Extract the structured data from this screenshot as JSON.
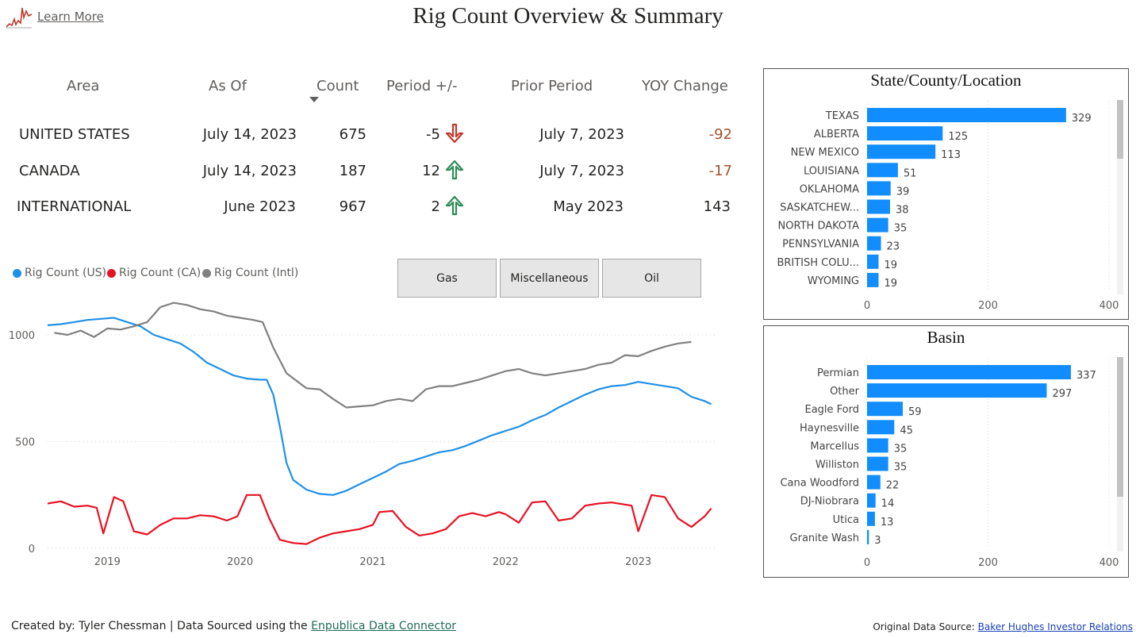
{
  "header": {
    "title": "Rig Count Overview & Summary",
    "learn_more": "Learn More"
  },
  "summary_table": {
    "headers": [
      "Area",
      "As Of",
      "Count",
      "Period +/-",
      "Prior Period",
      "YOY Change"
    ],
    "rows": [
      {
        "area": "UNITED STATES",
        "as_of": "July 14, 2023",
        "count": "675",
        "period_change": "-5",
        "direction": "down",
        "prior_period": "July 7, 2023",
        "yoy_change": "-92"
      },
      {
        "area": "CANADA",
        "as_of": "July 14, 2023",
        "count": "187",
        "period_change": "12",
        "direction": "up",
        "prior_period": "July 7, 2023",
        "yoy_change": "-17"
      },
      {
        "area": "INTERNATIONAL",
        "as_of": "June 2023",
        "count": "967",
        "period_change": "2",
        "direction": "up",
        "prior_period": "May 2023",
        "yoy_change": "143"
      }
    ],
    "colors": {
      "negative": "#a0522d",
      "arrow_down": "#c0392b",
      "arrow_up": "#2e8b57"
    }
  },
  "filters": {
    "buttons": [
      "Gas",
      "Miscellaneous",
      "Oil"
    ]
  },
  "legend": [
    {
      "label": "Rig Count (US)",
      "color": "#1e90e8"
    },
    {
      "label": "Rig Count (CA)",
      "color": "#e81123"
    },
    {
      "label": "Rig Count (Intl)",
      "color": "#808080"
    }
  ],
  "chart_data": [
    {
      "type": "line",
      "title": "",
      "xlabel": "",
      "ylabel": "",
      "x_ticks": [
        "2019",
        "2020",
        "2021",
        "2022",
        "2023"
      ],
      "y_ticks": [
        "0",
        "500",
        "1000"
      ],
      "ylim": [
        0,
        1200
      ],
      "xlim": [
        2018.55,
        2023.6
      ],
      "grid": true,
      "series": [
        {
          "name": "Rig Count (US)",
          "color": "#1e90e8",
          "x": [
            2018.55,
            2018.65,
            2018.75,
            2018.85,
            2018.95,
            2019.05,
            2019.15,
            2019.25,
            2019.35,
            2019.45,
            2019.55,
            2019.65,
            2019.75,
            2019.85,
            2019.95,
            2020.05,
            2020.15,
            2020.2,
            2020.25,
            2020.3,
            2020.35,
            2020.4,
            2020.5,
            2020.6,
            2020.7,
            2020.8,
            2020.9,
            2021.0,
            2021.1,
            2021.2,
            2021.3,
            2021.4,
            2021.5,
            2021.6,
            2021.7,
            2021.8,
            2021.9,
            2022.0,
            2022.1,
            2022.2,
            2022.3,
            2022.4,
            2022.5,
            2022.6,
            2022.7,
            2022.8,
            2022.9,
            2023.0,
            2023.1,
            2023.2,
            2023.3,
            2023.4,
            2023.5,
            2023.55
          ],
          "y": [
            1045,
            1050,
            1060,
            1070,
            1075,
            1080,
            1060,
            1040,
            1000,
            980,
            960,
            920,
            870,
            840,
            810,
            795,
            790,
            790,
            720,
            570,
            400,
            320,
            275,
            255,
            250,
            270,
            300,
            330,
            360,
            395,
            410,
            430,
            450,
            460,
            480,
            505,
            530,
            550,
            570,
            600,
            625,
            660,
            690,
            720,
            745,
            760,
            765,
            780,
            770,
            760,
            750,
            710,
            690,
            675
          ]
        },
        {
          "name": "Rig Count (CA)",
          "color": "#e81123",
          "x": [
            2018.55,
            2018.65,
            2018.75,
            2018.85,
            2018.92,
            2018.97,
            2019.05,
            2019.12,
            2019.2,
            2019.3,
            2019.4,
            2019.5,
            2019.6,
            2019.7,
            2019.8,
            2019.9,
            2019.98,
            2020.05,
            2020.15,
            2020.22,
            2020.3,
            2020.4,
            2020.5,
            2020.6,
            2020.7,
            2020.8,
            2020.9,
            2021.0,
            2021.05,
            2021.15,
            2021.25,
            2021.35,
            2021.45,
            2021.55,
            2021.65,
            2021.75,
            2021.85,
            2021.95,
            2022.0,
            2022.1,
            2022.2,
            2022.3,
            2022.4,
            2022.5,
            2022.6,
            2022.7,
            2022.8,
            2022.95,
            2023.0,
            2023.1,
            2023.2,
            2023.3,
            2023.4,
            2023.5,
            2023.55
          ],
          "y": [
            210,
            220,
            195,
            200,
            190,
            70,
            240,
            220,
            80,
            65,
            110,
            140,
            140,
            155,
            150,
            130,
            150,
            250,
            250,
            140,
            40,
            25,
            20,
            50,
            70,
            80,
            90,
            110,
            170,
            175,
            100,
            60,
            70,
            90,
            150,
            165,
            150,
            170,
            160,
            120,
            215,
            220,
            130,
            140,
            200,
            210,
            215,
            200,
            80,
            250,
            240,
            140,
            100,
            150,
            187
          ]
        },
        {
          "name": "Rig Count (Intl)",
          "color": "#808080",
          "x": [
            2018.6,
            2018.7,
            2018.8,
            2018.9,
            2019.0,
            2019.1,
            2019.2,
            2019.3,
            2019.4,
            2019.5,
            2019.6,
            2019.7,
            2019.8,
            2019.9,
            2020.0,
            2020.1,
            2020.17,
            2020.25,
            2020.35,
            2020.5,
            2020.6,
            2020.7,
            2020.8,
            2020.9,
            2021.0,
            2021.1,
            2021.2,
            2021.3,
            2021.4,
            2021.5,
            2021.6,
            2021.7,
            2021.8,
            2021.9,
            2022.0,
            2022.1,
            2022.2,
            2022.3,
            2022.4,
            2022.5,
            2022.6,
            2022.7,
            2022.8,
            2022.9,
            2023.0,
            2023.1,
            2023.2,
            2023.3,
            2023.4
          ],
          "y": [
            1010,
            1000,
            1020,
            990,
            1030,
            1025,
            1040,
            1060,
            1130,
            1150,
            1140,
            1120,
            1110,
            1090,
            1080,
            1070,
            1060,
            940,
            820,
            750,
            745,
            700,
            660,
            665,
            670,
            690,
            700,
            690,
            745,
            760,
            760,
            775,
            790,
            810,
            830,
            840,
            820,
            810,
            820,
            830,
            840,
            860,
            870,
            905,
            900,
            925,
            945,
            960,
            967
          ]
        }
      ]
    },
    {
      "type": "bar",
      "orientation": "horizontal",
      "title": "State/County/Location",
      "categories": [
        "TEXAS",
        "ALBERTA",
        "NEW MEXICO",
        "LOUISIANA",
        "OKLAHOMA",
        "SASKATCHEW...",
        "NORTH DAKOTA",
        "PENNSYLVANIA",
        "BRITISH COLU...",
        "WYOMING"
      ],
      "values": [
        329,
        125,
        113,
        51,
        39,
        38,
        35,
        23,
        19,
        19
      ],
      "xlim": [
        0,
        400
      ],
      "x_ticks": [
        "0",
        "200",
        "400"
      ],
      "color": "#118dff"
    },
    {
      "type": "bar",
      "orientation": "horizontal",
      "title": "Basin",
      "categories": [
        "Permian",
        "Other",
        "Eagle Ford",
        "Haynesville",
        "Marcellus",
        "Williston",
        "Cana Woodford",
        "DJ-Niobrara",
        "Utica",
        "Granite Wash"
      ],
      "values": [
        337,
        297,
        59,
        45,
        35,
        35,
        22,
        14,
        13,
        3
      ],
      "xlim": [
        0,
        400
      ],
      "x_ticks": [
        "0",
        "200",
        "400"
      ],
      "color": "#118dff"
    }
  ],
  "footer": {
    "created_by": "Created by: Tyler Chessman | Data Sourced using the",
    "connector_link": "Enpublica Data Connector",
    "source_label": "Original Data Source:",
    "source_link": "Baker Hughes Investor Relations"
  }
}
